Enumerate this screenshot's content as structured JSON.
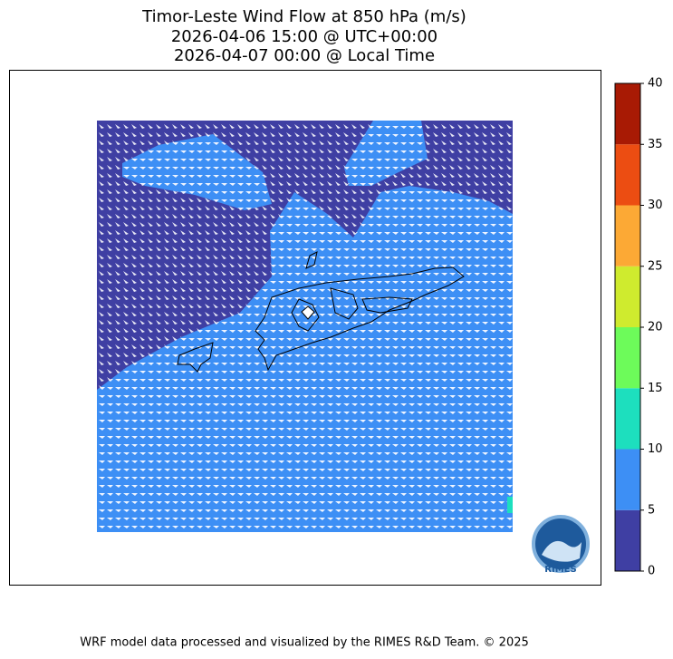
{
  "header": {
    "title_lines": [
      "Timor-Leste Wind Flow at 850 hPa (m/s)",
      "2026-04-06 15:00 @ UTC+00:00",
      "2026-04-07 00:00 @ Local Time"
    ]
  },
  "colorbar": {
    "ticks": [
      0,
      5,
      10,
      15,
      20,
      25,
      30,
      35,
      40
    ],
    "colors": [
      "#3f3fa3",
      "#3d8ff5",
      "#1ddfbe",
      "#6dfb5a",
      "#cfeb2e",
      "#fca935",
      "#ec4d12",
      "#a81a04"
    ]
  },
  "logo": {
    "text": "RIMES"
  },
  "footer": {
    "text": "WRF model data processed and visualized by the RIMES R&D Team. © 2025"
  }
}
